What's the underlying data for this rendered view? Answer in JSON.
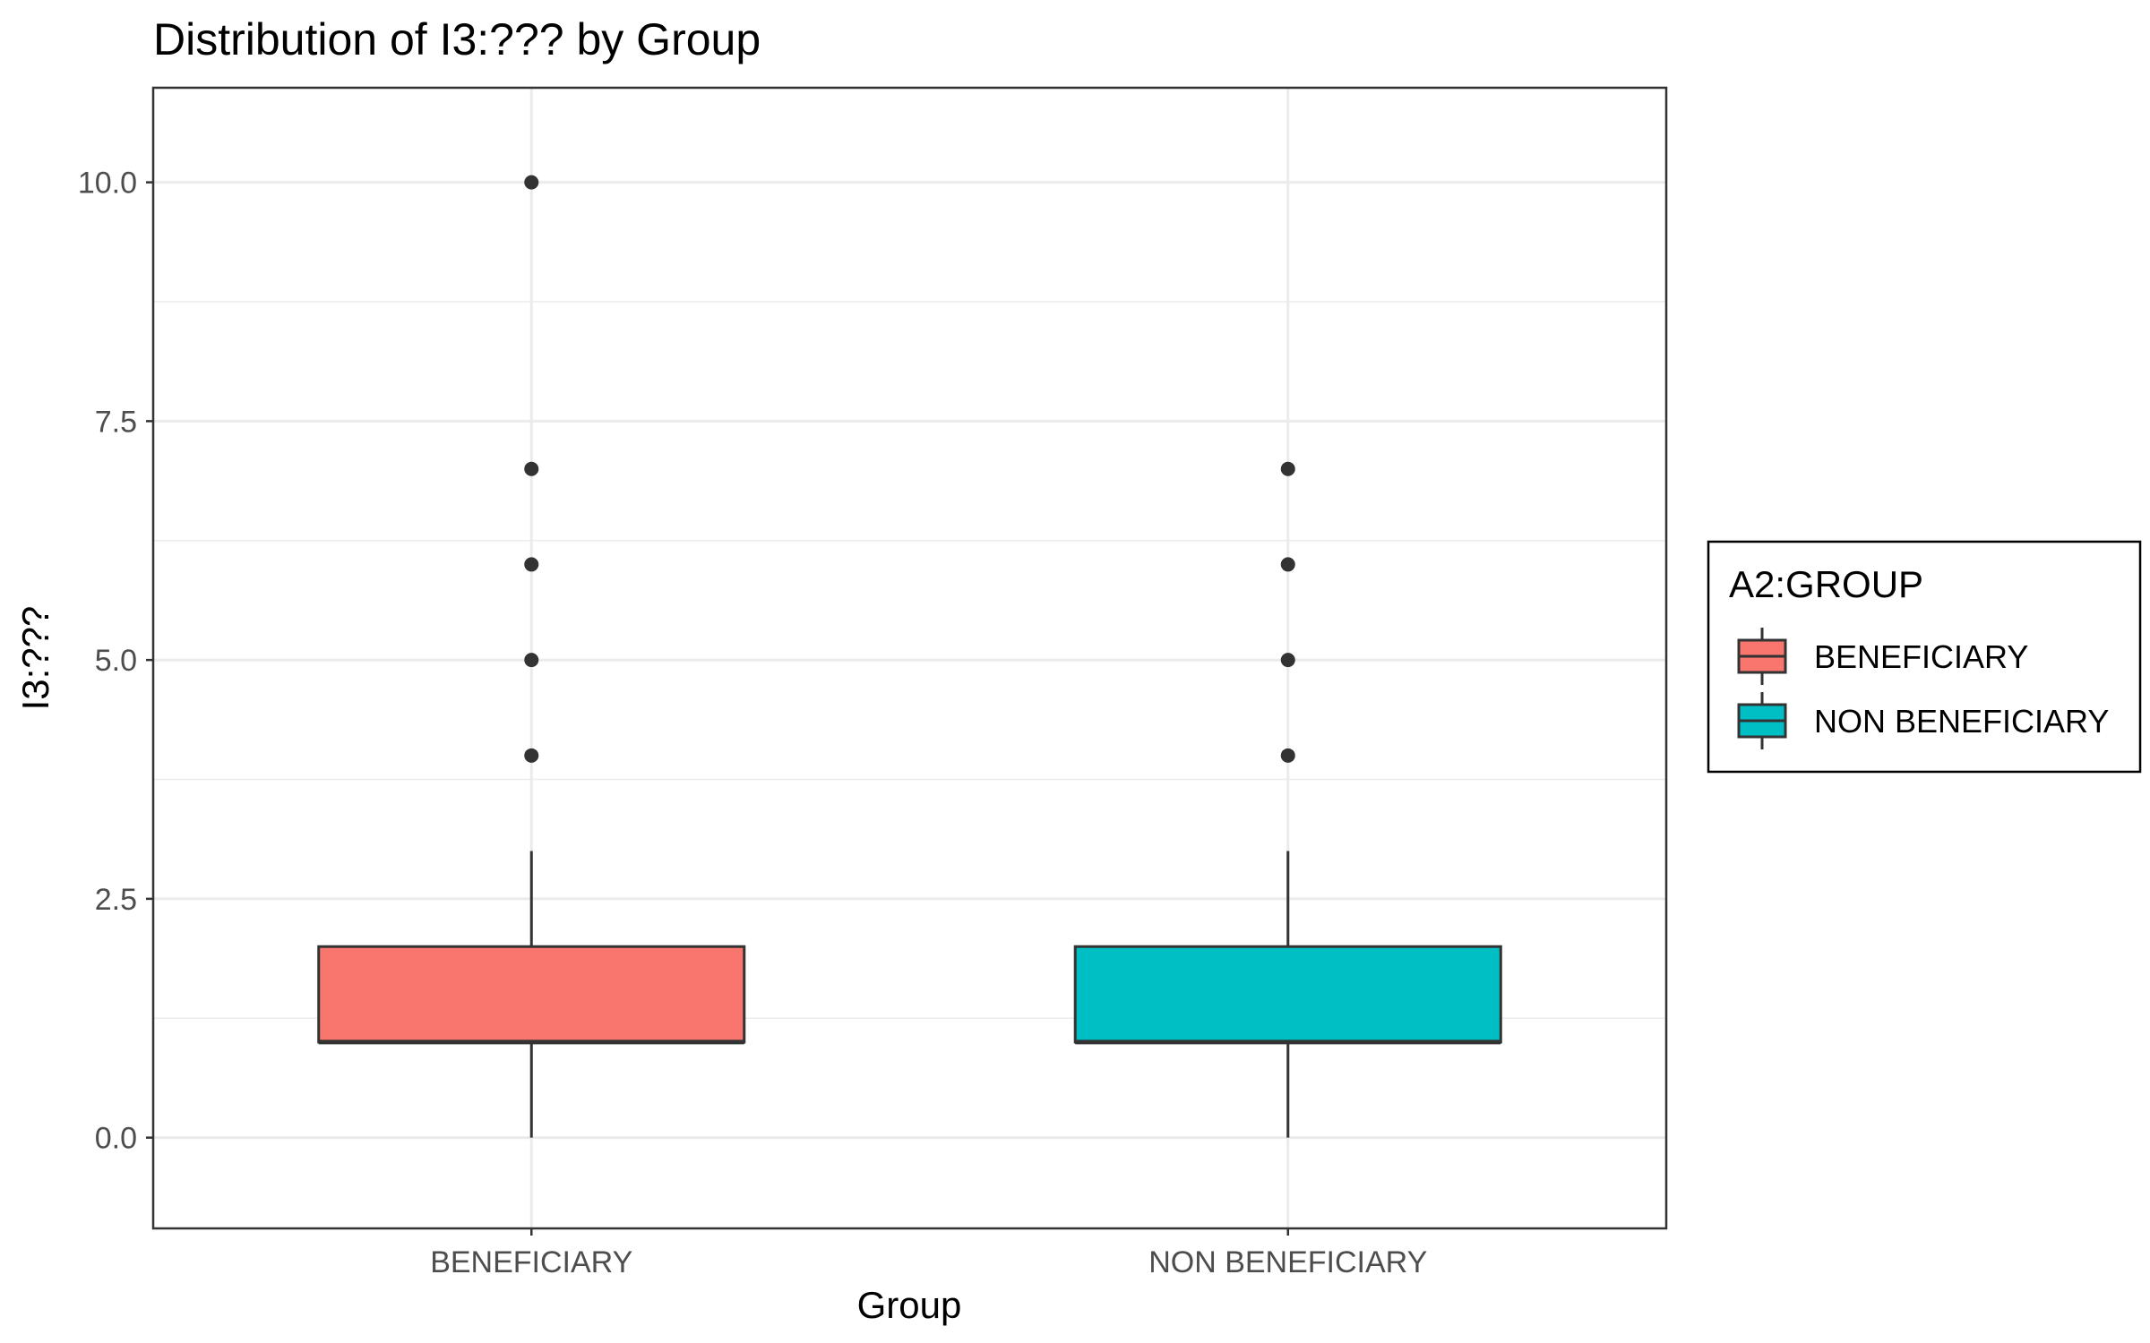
{
  "chart_data": {
    "type": "box",
    "title": "Distribution of I3:??? by Group",
    "xlabel": "Group",
    "ylabel": "I3:???",
    "ylim": [
      -0.95,
      10.99
    ],
    "yticks": [
      0.0,
      2.5,
      5.0,
      7.5,
      10.0
    ],
    "ytick_labels": [
      "0.0",
      "2.5",
      "5.0",
      "7.5",
      "10.0"
    ],
    "categories": [
      "BENEFICIARY",
      "NON BENEFICIARY"
    ],
    "grid": true,
    "legend": {
      "title": "A2:GROUP",
      "position": "right",
      "entries": [
        {
          "label": "BENEFICIARY",
          "color": "#F8766D"
        },
        {
          "label": "NON BENEFICIARY",
          "color": "#00BFC4"
        }
      ]
    },
    "series": [
      {
        "name": "BENEFICIARY",
        "color": "#F8766D",
        "whisker_low": 0,
        "q1": 1,
        "median": 1,
        "q3": 2,
        "whisker_high": 3,
        "outliers": [
          4,
          5,
          6,
          7,
          10
        ]
      },
      {
        "name": "NON BENEFICIARY",
        "color": "#00BFC4",
        "whisker_low": 0,
        "q1": 1,
        "median": 1,
        "q3": 2,
        "whisker_high": 3,
        "outliers": [
          4,
          5,
          6,
          7
        ]
      }
    ]
  }
}
